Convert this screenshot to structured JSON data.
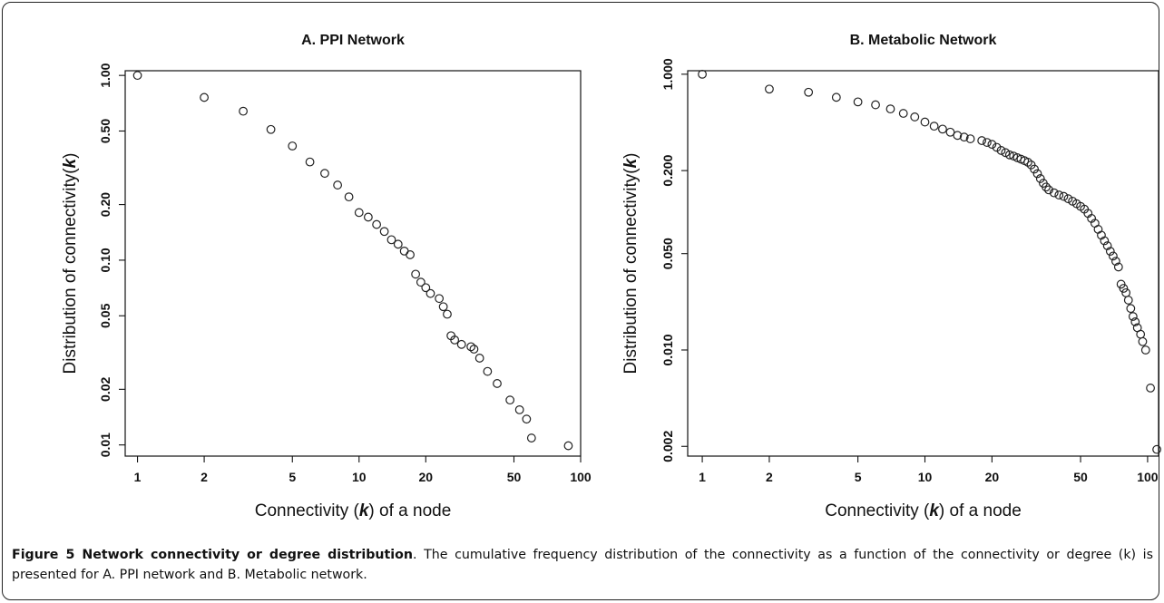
{
  "chart_data": [
    {
      "type": "scatter",
      "title": "A. PPI Network",
      "xlabel_prefix": "Connectivity (",
      "xlabel_k": "k",
      "xlabel_suffix": ") of a node",
      "ylabel_prefix": "Distribution of connectivity(",
      "ylabel_k": "k",
      "ylabel_suffix": ")",
      "x_scale": "log",
      "y_scale": "log",
      "xlim": [
        0.88,
        100
      ],
      "ylim": [
        0.0087,
        1.06
      ],
      "x_ticks": [
        1,
        2,
        5,
        10,
        20,
        50,
        100
      ],
      "x_tick_labels": [
        "1",
        "2",
        "5",
        "10",
        "20",
        "50",
        "100"
      ],
      "y_ticks": [
        0.01,
        0.02,
        0.05,
        0.1,
        0.2,
        0.5,
        1.0
      ],
      "y_tick_labels": [
        "0.01",
        "0.02",
        "0.05",
        "0.10",
        "0.20",
        "0.50",
        "1.00"
      ],
      "marker": "open-circle",
      "grid": false,
      "series": [
        {
          "x": [
            1,
            2,
            3,
            4,
            5,
            6,
            7,
            8,
            9,
            10,
            11,
            12,
            13,
            14,
            15,
            16,
            17,
            18,
            19,
            20,
            21,
            23,
            24,
            25,
            26,
            27,
            29,
            32,
            33,
            35,
            38,
            42,
            48,
            53,
            57,
            60,
            88
          ],
          "y": [
            1.0,
            0.76,
            0.64,
            0.51,
            0.415,
            0.34,
            0.295,
            0.255,
            0.22,
            0.181,
            0.171,
            0.156,
            0.143,
            0.129,
            0.122,
            0.112,
            0.107,
            0.084,
            0.076,
            0.071,
            0.066,
            0.062,
            0.056,
            0.051,
            0.039,
            0.037,
            0.035,
            0.034,
            0.033,
            0.0295,
            0.025,
            0.0215,
            0.0175,
            0.0155,
            0.0138,
            0.0109,
            0.0099
          ]
        }
      ]
    },
    {
      "type": "scatter",
      "title": "B. Metabolic Network",
      "xlabel_prefix": "Connectivity (",
      "xlabel_k": "k",
      "xlabel_suffix": ") of a node",
      "ylabel_prefix": "Distribution of connectivity(",
      "ylabel_k": "k",
      "ylabel_suffix": ")",
      "x_scale": "log",
      "y_scale": "log",
      "xlim": [
        0.86,
        112
      ],
      "ylim": [
        0.0017,
        1.06
      ],
      "x_ticks": [
        1,
        2,
        5,
        10,
        20,
        50,
        100
      ],
      "x_tick_labels": [
        "1",
        "2",
        "5",
        "10",
        "20",
        "50",
        "100"
      ],
      "y_ticks": [
        0.002,
        0.01,
        0.05,
        0.2,
        1.0
      ],
      "y_tick_labels": [
        "0.002",
        "0.010",
        "0.050",
        "0.200",
        "1.000"
      ],
      "marker": "open-circle",
      "grid": false,
      "series": [
        {
          "x": [
            1,
            2,
            3,
            4,
            5,
            6,
            7,
            8,
            9,
            10,
            11,
            12,
            13,
            14,
            15,
            16,
            18,
            19,
            20,
            21,
            22,
            23,
            24,
            25,
            26,
            27,
            28,
            29,
            30,
            31,
            32,
            33,
            34,
            35,
            36,
            38,
            40,
            42,
            44,
            46,
            48,
            50,
            52,
            54,
            56,
            58,
            60,
            62,
            64,
            66,
            68,
            70,
            72,
            74,
            76,
            78,
            80,
            82,
            84,
            86,
            88,
            90,
            93,
            95,
            98,
            103,
            110
          ],
          "y": [
            1.0,
            0.78,
            0.74,
            0.68,
            0.63,
            0.6,
            0.56,
            0.52,
            0.49,
            0.45,
            0.42,
            0.4,
            0.38,
            0.36,
            0.35,
            0.34,
            0.33,
            0.32,
            0.31,
            0.295,
            0.28,
            0.27,
            0.26,
            0.255,
            0.248,
            0.242,
            0.236,
            0.23,
            0.22,
            0.205,
            0.19,
            0.175,
            0.162,
            0.152,
            0.145,
            0.138,
            0.133,
            0.13,
            0.125,
            0.12,
            0.115,
            0.11,
            0.105,
            0.098,
            0.09,
            0.083,
            0.075,
            0.068,
            0.062,
            0.057,
            0.052,
            0.048,
            0.044,
            0.04,
            0.03,
            0.028,
            0.026,
            0.023,
            0.02,
            0.0175,
            0.016,
            0.0145,
            0.013,
            0.0115,
            0.01,
            0.0053,
            0.0019
          ]
        }
      ]
    }
  ],
  "caption": {
    "label": "Figure 5 Network connectivity or degree distribution",
    "text": ". The cumulative frequency distribution of the connectivity as a function of the connectivity or degree (k) is presented for A. PPI network and B. Metabolic network."
  }
}
